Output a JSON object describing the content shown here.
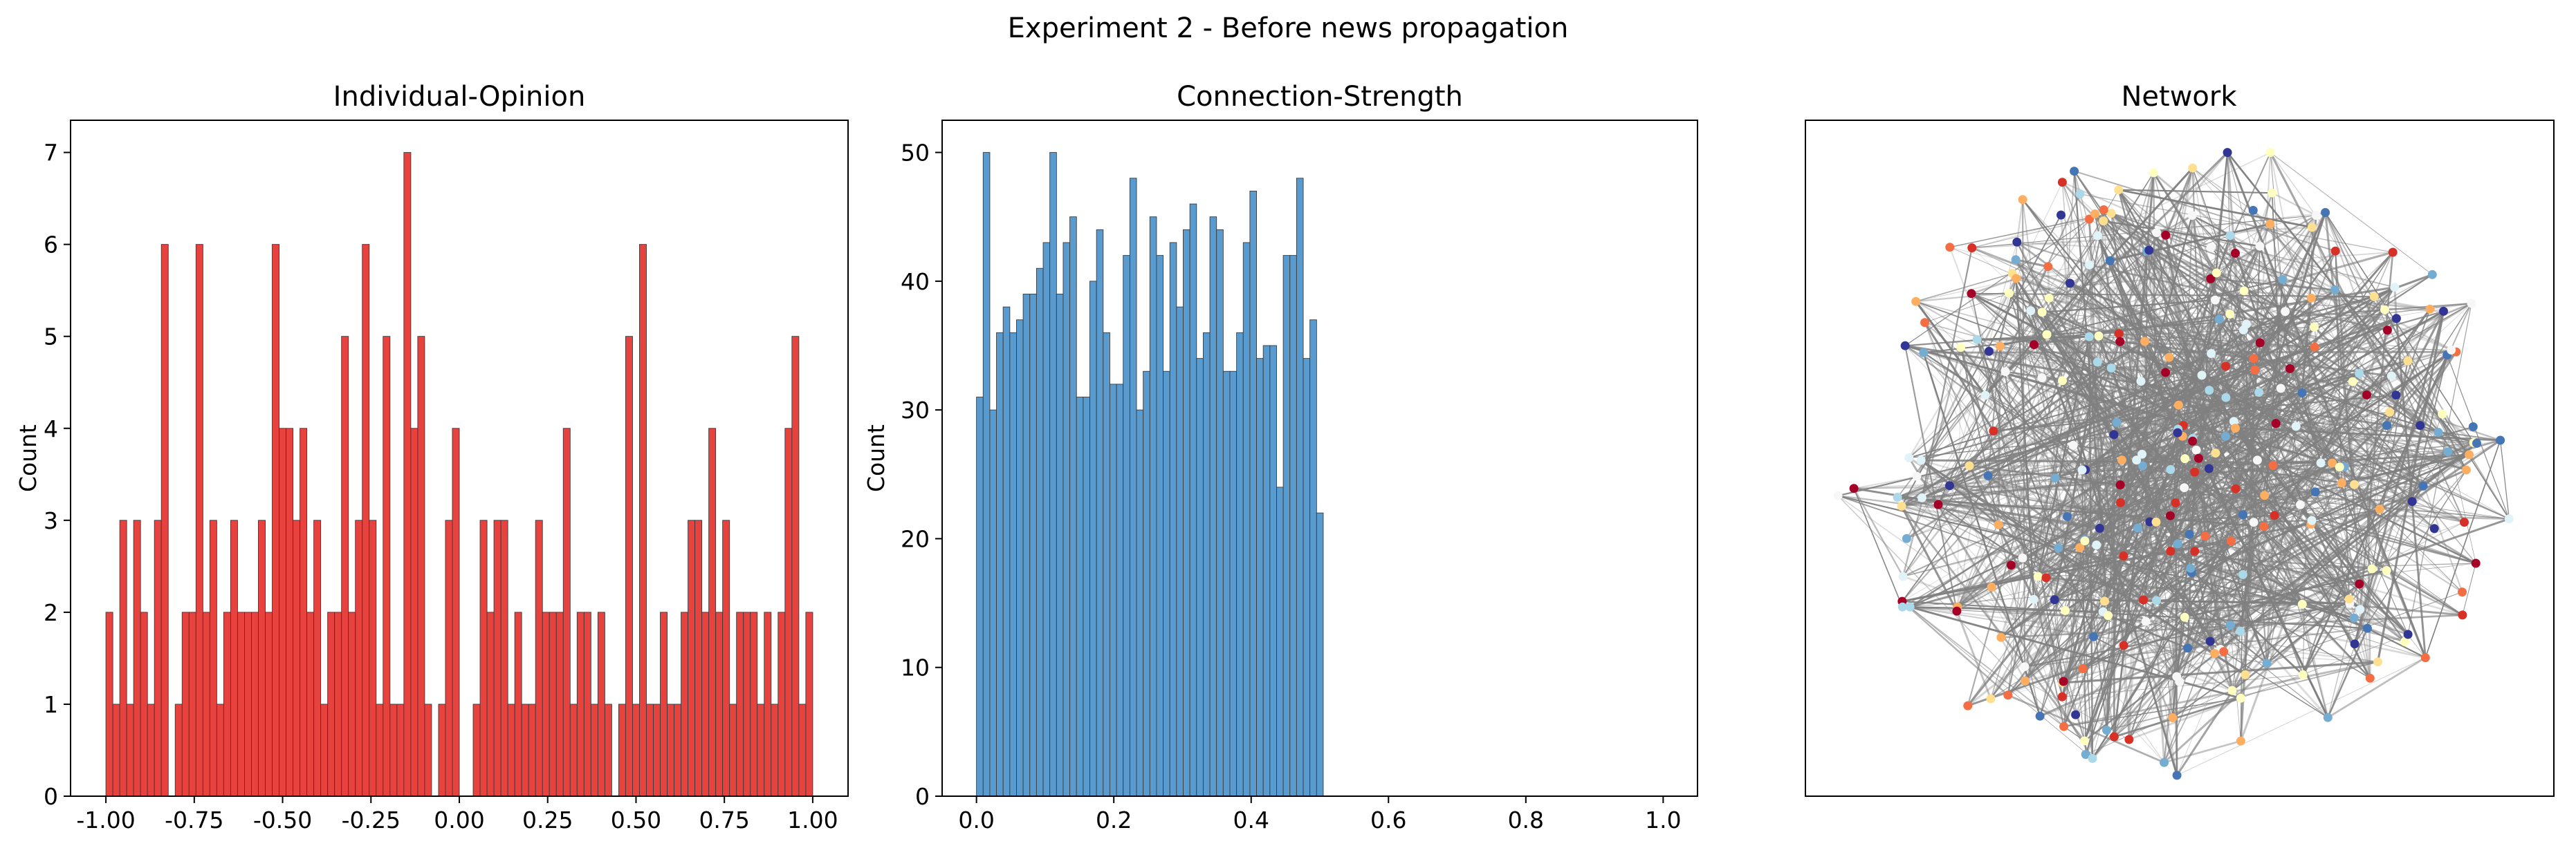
{
  "figure": {
    "suptitle": "Experiment 2 - Before news propagation"
  },
  "chart_data": [
    {
      "type": "bar",
      "title": "Individual-Opinion",
      "xlabel": "",
      "ylabel": "Count",
      "xlim": [
        -1.1,
        1.1
      ],
      "ylim": [
        0,
        7.35
      ],
      "x_ticks": [
        "-1.00",
        "-0.75",
        "-0.50",
        "-0.25",
        "0.00",
        "0.25",
        "0.50",
        "0.75",
        "1.00"
      ],
      "y_ticks": [
        "0",
        "1",
        "2",
        "3",
        "4",
        "5",
        "6",
        "7"
      ],
      "bin_range": [
        -1.0,
        1.0
      ],
      "values": [
        2,
        1,
        3,
        1,
        3,
        2,
        1,
        3,
        6,
        0,
        1,
        2,
        2,
        6,
        2,
        3,
        1,
        2,
        3,
        2,
        2,
        2,
        3,
        2,
        6,
        4,
        4,
        3,
        4,
        2,
        3,
        1,
        2,
        2,
        5,
        2,
        3,
        6,
        3,
        1,
        5,
        1,
        1,
        7,
        4,
        5,
        1,
        0,
        1,
        3,
        4,
        0,
        0,
        1,
        3,
        2,
        3,
        3,
        1,
        2,
        1,
        1,
        3,
        2,
        2,
        2,
        4,
        1,
        2,
        2,
        1,
        2,
        1,
        0,
        1,
        5,
        1,
        6,
        1,
        1,
        2,
        1,
        1,
        2,
        3,
        3,
        2,
        4,
        2,
        3,
        1,
        2,
        2,
        2,
        1,
        2,
        1,
        2,
        4,
        5,
        1,
        2
      ],
      "color": "#e8423f"
    },
    {
      "type": "bar",
      "title": "Connection-Strength",
      "xlabel": "",
      "ylabel": "Count",
      "xlim": [
        -0.05,
        1.05
      ],
      "ylim": [
        0,
        52.5
      ],
      "x_ticks": [
        "0.0",
        "0.2",
        "0.4",
        "0.6",
        "0.8",
        "1.0"
      ],
      "y_ticks": [
        "0",
        "10",
        "20",
        "30",
        "40",
        "50"
      ],
      "bin_range": [
        0.0,
        0.505
      ],
      "values": [
        31,
        50,
        30,
        36,
        38,
        36,
        37,
        39,
        39,
        41,
        43,
        50,
        39,
        43,
        45,
        31,
        31,
        40,
        44,
        36,
        32,
        32,
        42,
        48,
        30,
        33,
        45,
        42,
        33,
        43,
        38,
        44,
        46,
        34,
        36,
        45,
        44,
        33,
        33,
        36,
        43,
        47,
        34,
        35,
        35,
        24,
        42,
        42,
        48,
        34,
        37,
        22
      ],
      "color": "#5a9bcf"
    },
    {
      "type": "network",
      "title": "Network",
      "node_colors": [
        "#a50026",
        "#d73027",
        "#f46d43",
        "#fdae61",
        "#fee090",
        "#ffffbf",
        "#e0f3f8",
        "#abd9e9",
        "#74add1",
        "#4575b4",
        "#313695",
        "#f7f7f7"
      ],
      "edge_color": "#808080"
    }
  ]
}
